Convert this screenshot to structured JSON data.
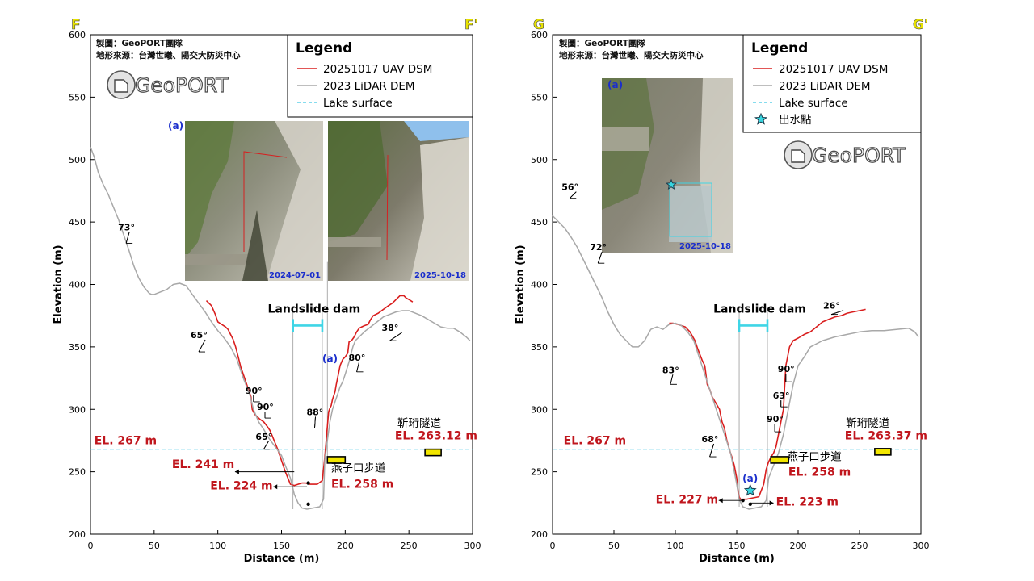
{
  "colors": {
    "uav": "#d91e1e",
    "lidar": "#a8a8a8",
    "lake": "#5fd0e8",
    "annotation_red": "#c0161d",
    "section_letter": "#e8e300",
    "photo_label": "#1a2ecc",
    "tunnel_fill": "#f2e600",
    "dam_bracket": "#3fd5e6",
    "star_fill": "#38d6e0"
  },
  "chart_data": [
    {
      "type": "line",
      "section_start_label": "F",
      "section_end_label": "F'",
      "xlabel": "Distance (m)",
      "ylabel": "Elevation (m)",
      "xlim": [
        0,
        300
      ],
      "ylim": [
        200,
        600
      ],
      "xticks": [
        0,
        50,
        100,
        150,
        200,
        250,
        300
      ],
      "yticks": [
        200,
        250,
        300,
        350,
        400,
        450,
        500,
        550,
        600
      ],
      "grid": false,
      "legend": {
        "title": "Legend",
        "placement": "top-right",
        "entries": [
          {
            "label": "20251017 UAV DSM",
            "style": "uav"
          },
          {
            "label": "2023 LiDAR DEM",
            "style": "lidar"
          },
          {
            "label": "Lake surface",
            "style": "lake"
          }
        ]
      },
      "credits": [
        "製圖：GeoPORT團隊",
        "地形來源：台灣世曦、陽交大防災中心"
      ],
      "logo_text": "GeoPORT",
      "series": [
        {
          "name": "20251017 UAV DSM",
          "style": "uav",
          "x": [
            91,
            95,
            98,
            100,
            103,
            106,
            108,
            110,
            112,
            114,
            116,
            118,
            120,
            122,
            124,
            126,
            127,
            129,
            131,
            133,
            136,
            139,
            141,
            143,
            145,
            147,
            149,
            151,
            153,
            155,
            157,
            160,
            163,
            166,
            169,
            172,
            178,
            182,
            183,
            184,
            187,
            188,
            189,
            190,
            192,
            193,
            194,
            196,
            198,
            200,
            202,
            203,
            205,
            207,
            209,
            211,
            213,
            215,
            218,
            220,
            222,
            226,
            230,
            234,
            237,
            240,
            243,
            246,
            248,
            250,
            253
          ],
          "y": [
            387,
            383,
            376,
            370,
            368,
            366,
            364,
            360,
            356,
            350,
            342,
            334,
            328,
            322,
            316,
            310,
            300,
            296,
            294,
            292,
            290,
            286,
            283,
            278,
            273,
            268,
            262,
            256,
            250,
            245,
            240,
            239,
            240,
            241,
            241,
            240,
            240,
            243,
            252,
            262,
            298,
            301,
            303,
            308,
            314,
            320,
            325,
            335,
            340,
            342,
            345,
            354,
            355,
            358,
            362,
            365,
            366,
            367,
            368,
            372,
            375,
            377,
            380,
            383,
            385,
            388,
            391,
            391,
            389,
            388,
            386
          ]
        },
        {
          "name": "2023 LiDAR DEM",
          "style": "lidar",
          "x": [
            0,
            3,
            6,
            10,
            14,
            18,
            22,
            26,
            30,
            34,
            38,
            42,
            46,
            48,
            50,
            55,
            60,
            65,
            70,
            75,
            80,
            85,
            90,
            95,
            100,
            105,
            110,
            115,
            120,
            125,
            128,
            132,
            136,
            140,
            145,
            150,
            153,
            157,
            160,
            163,
            166,
            170,
            175,
            180,
            183,
            184,
            188,
            190,
            192,
            194,
            196,
            198,
            200,
            203,
            206,
            208,
            210,
            213,
            216,
            220,
            225,
            230,
            235,
            240,
            245,
            250,
            255,
            260,
            265,
            270,
            275,
            280,
            285,
            290,
            295,
            298
          ],
          "y": [
            510,
            502,
            490,
            480,
            472,
            462,
            452,
            440,
            428,
            415,
            405,
            398,
            393,
            392,
            392,
            394,
            396,
            400,
            401,
            399,
            392,
            385,
            378,
            370,
            363,
            357,
            350,
            340,
            325,
            312,
            300,
            290,
            284,
            277,
            270,
            263,
            255,
            245,
            232,
            225,
            221,
            220,
            221,
            222,
            228,
            260,
            290,
            300,
            306,
            312,
            318,
            322,
            328,
            338,
            350,
            355,
            357,
            360,
            363,
            366,
            370,
            374,
            376,
            378,
            379,
            379,
            377,
            375,
            372,
            369,
            366,
            365,
            365,
            362,
            358,
            355
          ]
        },
        {
          "name": "Lake surface",
          "style": "lake",
          "x": [
            0,
            300
          ],
          "y": [
            268,
            268
          ]
        }
      ],
      "dam": {
        "label": "Landslide dam",
        "x_range": [
          159,
          182
        ],
        "y": 380
      },
      "photo_leader_x": [
        159,
        182
      ],
      "pit_leader": {
        "x": 186,
        "y_range": [
          258,
          418
        ]
      },
      "slope_marks": [
        {
          "label": "73°",
          "x": 28,
          "y": 433,
          "dx": 4,
          "dy": -14
        },
        {
          "label": "65°",
          "x": 85,
          "y": 346,
          "dx": 8,
          "dy": -15
        },
        {
          "label": "90°",
          "x": 128,
          "y": 306,
          "dx": 0,
          "dy": -8
        },
        {
          "label": "90°",
          "x": 137,
          "y": 293,
          "dx": 0,
          "dy": -8
        },
        {
          "label": "65°",
          "x": 136,
          "y": 268,
          "dx": 6,
          "dy": -10
        },
        {
          "label": "88°",
          "x": 176,
          "y": 285,
          "dx": 1,
          "dy": -14
        },
        {
          "label": "80°",
          "x": 209,
          "y": 330,
          "dx": 3,
          "dy": -12
        },
        {
          "label": "38°",
          "x": 235,
          "y": 355,
          "dx": 15,
          "dy": -10
        }
      ],
      "elevation_labels": [
        {
          "text": "EL. 267 m",
          "x": 3,
          "y": 272
        },
        {
          "text": "EL. 241 m",
          "x": 64,
          "y": 253,
          "arrow_to_x": 160,
          "arrow_y": 250
        },
        {
          "text": "EL. 224 m",
          "x": 94,
          "y": 236,
          "arrow_to_x": 170,
          "arrow_y": 238
        },
        {
          "text": "EL. 258 m",
          "x": 189,
          "y": 237
        },
        {
          "text": "EL. 263.12 m",
          "x": 239,
          "y": 276
        }
      ],
      "markers": [
        {
          "x": 171,
          "y": 241
        },
        {
          "x": 171,
          "y": 224
        }
      ],
      "tunnels": [
        {
          "x": 193,
          "y": 259.5,
          "label": "燕子口步道",
          "label_x": 189,
          "label_y": 250
        },
        {
          "x": 269,
          "y": 265.5,
          "label": "靳珩隧道",
          "label_x": 241,
          "label_y": 286
        }
      ],
      "photos": [
        {
          "title": "(a)",
          "date": "2024-07-01",
          "title_x": 62,
          "title_y": 527
        },
        {
          "date": "2025-10-18"
        }
      ]
    },
    {
      "type": "line",
      "section_start_label": "G",
      "section_end_label": "G'",
      "xlabel": "Distance (m)",
      "ylabel": "Elevation (m)",
      "xlim": [
        0,
        300
      ],
      "ylim": [
        200,
        600
      ],
      "xticks": [
        0,
        50,
        100,
        150,
        200,
        250,
        300
      ],
      "yticks": [
        200,
        250,
        300,
        350,
        400,
        450,
        500,
        550,
        600
      ],
      "grid": false,
      "legend": {
        "title": "Legend",
        "placement": "top-right",
        "entries": [
          {
            "label": "20251017 UAV DSM",
            "style": "uav"
          },
          {
            "label": "2023 LiDAR DEM",
            "style": "lidar"
          },
          {
            "label": "Lake surface",
            "style": "lake"
          },
          {
            "label": "出水點",
            "style": "star"
          }
        ]
      },
      "credits": [
        "製圖：GeoPORT團隊",
        "地形來源：台灣世曦、陽交大防災中心"
      ],
      "logo_text": "GeoPORT",
      "series": [
        {
          "name": "20251017 UAV DSM",
          "style": "uav",
          "x": [
            95,
            98,
            102,
            108,
            112,
            116,
            118,
            120,
            122,
            124,
            126,
            128,
            130,
            133,
            136,
            138,
            140,
            142,
            144,
            146,
            148,
            150,
            151,
            152,
            153,
            158,
            163,
            168,
            172,
            174,
            176,
            178,
            180,
            182,
            184,
            186,
            188,
            190,
            193,
            196,
            200,
            205,
            210,
            215,
            220,
            225,
            230,
            235,
            240,
            245,
            250,
            255
          ],
          "y": [
            369,
            369,
            368,
            366,
            362,
            355,
            349,
            344,
            339,
            335,
            320,
            316,
            310,
            305,
            300,
            290,
            285,
            275,
            268,
            262,
            255,
            245,
            235,
            230,
            228,
            228,
            229,
            230,
            240,
            252,
            258,
            262,
            265,
            270,
            280,
            290,
            300,
            335,
            350,
            355,
            357,
            360,
            362,
            366,
            370,
            372,
            374,
            375,
            377,
            378,
            379,
            380
          ]
        },
        {
          "name": "2023 LiDAR DEM",
          "style": "lidar",
          "x": [
            0,
            5,
            10,
            15,
            20,
            25,
            30,
            35,
            40,
            45,
            50,
            55,
            60,
            65,
            70,
            75,
            80,
            85,
            90,
            95,
            100,
            105,
            110,
            115,
            120,
            125,
            130,
            135,
            140,
            145,
            148,
            150,
            152,
            155,
            160,
            165,
            170,
            174,
            176,
            180,
            184,
            188,
            192,
            196,
            200,
            205,
            210,
            220,
            230,
            240,
            250,
            260,
            270,
            280,
            290,
            295,
            298
          ],
          "y": [
            455,
            450,
            445,
            438,
            430,
            420,
            410,
            400,
            390,
            378,
            368,
            360,
            355,
            350,
            350,
            355,
            364,
            366,
            364,
            368,
            369,
            367,
            362,
            355,
            340,
            325,
            310,
            295,
            280,
            265,
            250,
            240,
            228,
            222,
            220,
            221,
            222,
            227,
            245,
            255,
            265,
            280,
            300,
            320,
            335,
            342,
            350,
            355,
            358,
            360,
            362,
            363,
            363,
            364,
            365,
            362,
            358
          ]
        },
        {
          "name": "Lake surface",
          "style": "lake",
          "x": [
            0,
            300
          ],
          "y": [
            268,
            268
          ]
        }
      ],
      "dam": {
        "label": "Landslide dam",
        "x_range": [
          152,
          175
        ],
        "y": 380
      },
      "photo_leader_x": [
        152,
        175
      ],
      "slope_marks": [
        {
          "label": "56°",
          "x": 14,
          "y": 469,
          "dx": 8,
          "dy": -8
        },
        {
          "label": "72°",
          "x": 37,
          "y": 417,
          "dx": 5,
          "dy": -14
        },
        {
          "label": "83°",
          "x": 96,
          "y": 320,
          "dx": 3,
          "dy": -12
        },
        {
          "label": "68°",
          "x": 128,
          "y": 262,
          "dx": 5,
          "dy": -16
        },
        {
          "label": "90°",
          "x": 190,
          "y": 322,
          "dx": 0,
          "dy": -10
        },
        {
          "label": "63°",
          "x": 186,
          "y": 302,
          "dx": 0,
          "dy": -8
        },
        {
          "label": "90°",
          "x": 181,
          "y": 282,
          "dx": 0,
          "dy": -10
        },
        {
          "label": "26°",
          "x": 227,
          "y": 376,
          "dx": 15,
          "dy": -5
        }
      ],
      "elevation_labels": [
        {
          "text": "EL. 267 m",
          "x": 9,
          "y": 272
        },
        {
          "text": "EL. 227 m",
          "x": 84,
          "y": 225,
          "arrow_to_x": 154,
          "arrow_y": 227
        },
        {
          "text": "EL. 223 m",
          "x": 182,
          "y": 223,
          "arrow_from_x": 161,
          "arrow_y": 225
        },
        {
          "text": "EL. 258 m",
          "x": 192,
          "y": 247
        },
        {
          "text": "EL. 263.37 m",
          "x": 238,
          "y": 276
        }
      ],
      "markers": [
        {
          "x": 155,
          "y": 227
        },
        {
          "x": 161,
          "y": 224
        }
      ],
      "tunnels": [
        {
          "x": 185,
          "y": 259.5,
          "label": "燕子口步道",
          "label_x": 191,
          "label_y": 259
        },
        {
          "x": 269,
          "y": 266,
          "label": "靳珩隧道",
          "label_x": 239,
          "label_y": 286
        }
      ],
      "star_marker": {
        "label": "(a)",
        "x": 161,
        "y": 235
      },
      "photos": [
        {
          "title": "(a)",
          "date": "2025-10-18"
        }
      ]
    }
  ]
}
